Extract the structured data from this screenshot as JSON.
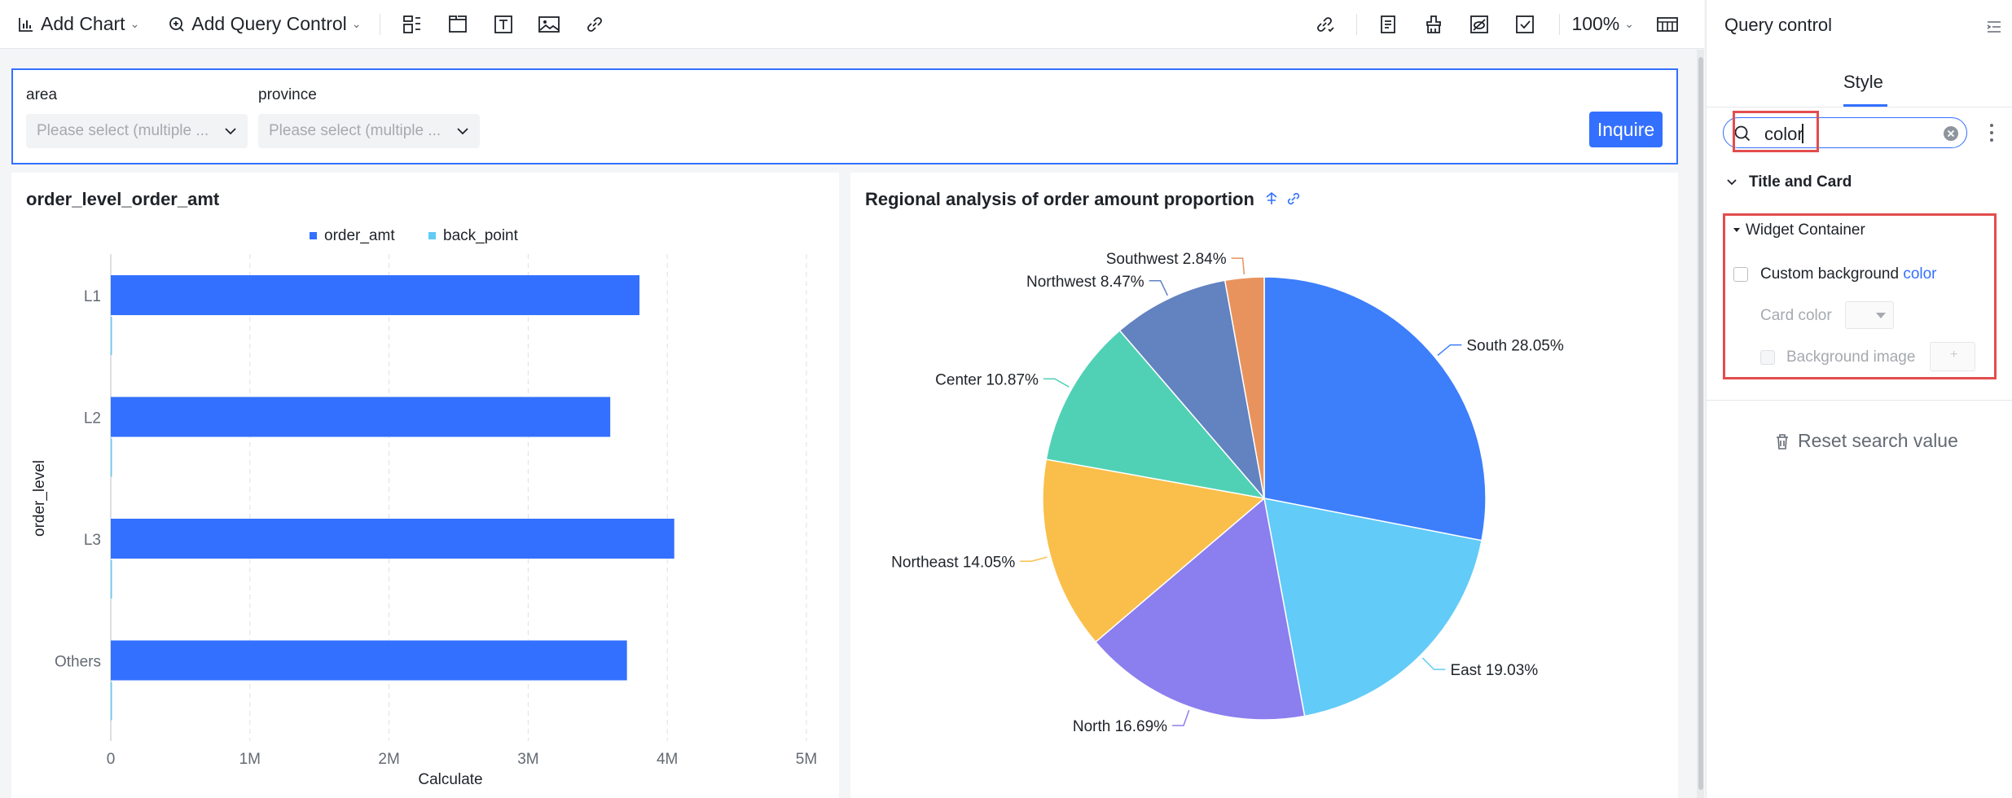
{
  "toolbar": {
    "add_chart": "Add Chart",
    "add_query_control": "Add Query Control",
    "zoom": "100%"
  },
  "query": {
    "area_label": "area",
    "area_placeholder": "Please select (multiple ...",
    "province_label": "province",
    "province_placeholder": "Please select (multiple ...",
    "inquire": "Inquire"
  },
  "chart_data": [
    {
      "type": "bar",
      "orientation": "horizontal",
      "title": "order_level_order_amt",
      "categories": [
        "L1",
        "L2",
        "L3",
        "Others"
      ],
      "series": [
        {
          "name": "order_amt",
          "color": "#3370ff",
          "values": [
            3800000,
            3590000,
            4050000,
            3710000
          ]
        },
        {
          "name": "back_point",
          "color": "#62cbf7",
          "values": [
            2000,
            2000,
            2000,
            2000
          ]
        }
      ],
      "xlabel": "Calculate",
      "ylabel": "order_level",
      "xlim": [
        0,
        5000000
      ],
      "xticks": [
        0,
        1000000,
        2000000,
        3000000,
        4000000,
        5000000
      ],
      "xtick_labels": [
        "0",
        "1M",
        "2M",
        "3M",
        "4M",
        "5M"
      ],
      "legend": "top-center"
    },
    {
      "type": "pie",
      "title": "Regional analysis of order amount proportion",
      "slices": [
        {
          "label": "South",
          "percent": 28.05,
          "color": "#3d7efb",
          "text": "South 28.05%"
        },
        {
          "label": "East",
          "percent": 19.03,
          "color": "#62cbf7",
          "text": "East 19.03%"
        },
        {
          "label": "North",
          "percent": 16.69,
          "color": "#8b7eee",
          "text": "North 16.69%"
        },
        {
          "label": "Northeast",
          "percent": 14.05,
          "color": "#fabf4a",
          "text": "Northeast 14.05%"
        },
        {
          "label": "Center",
          "percent": 10.87,
          "color": "#50d1b6",
          "text": "Center 10.87%"
        },
        {
          "label": "Northwest",
          "percent": 8.47,
          "color": "#6282c0",
          "text": "Northwest 8.47%"
        },
        {
          "label": "Southwest",
          "percent": 2.84,
          "color": "#e8935e",
          "text": "Southwest 2.84%"
        }
      ]
    }
  ],
  "side": {
    "title": "Query control",
    "tab": "Style",
    "search_value": "color",
    "section_title_card": "Title and Card",
    "section_widget": "Widget Container",
    "custom_bg_prefix": "Custom background ",
    "custom_bg_highlight": "color",
    "card_color": "Card color",
    "bg_image": "Background image",
    "reset": "Reset search value"
  }
}
